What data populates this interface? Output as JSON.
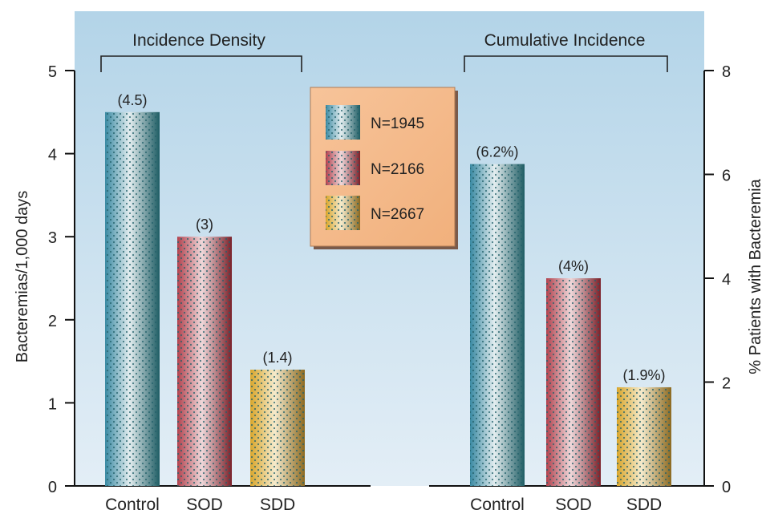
{
  "chart_data": [
    {
      "type": "bar",
      "title": "Incidence Density",
      "categories": [
        "Control",
        "SOD",
        "SDD"
      ],
      "values": [
        4.5,
        3,
        1.4
      ],
      "data_labels": [
        "(4.5)",
        "(3)",
        "(1.4)"
      ],
      "ylabel": "Bacteremias/1,000 days",
      "ylim": [
        0,
        5
      ],
      "yticks": [
        "0",
        "1",
        "2",
        "3",
        "4",
        "5"
      ],
      "axis_side": "left"
    },
    {
      "type": "bar",
      "title": "Cumulative Incidence",
      "categories": [
        "Control",
        "SOD",
        "SDD"
      ],
      "values": [
        6.2,
        4,
        1.9
      ],
      "data_labels": [
        "(6.2%)",
        "(4%)",
        "(1.9%)"
      ],
      "ylabel": "% Patients with Bacteremia",
      "ylim": [
        0,
        8
      ],
      "yticks": [
        "0",
        "2",
        "4",
        "6",
        "8"
      ],
      "axis_side": "right"
    }
  ],
  "legend": {
    "placement": "top-center",
    "items": [
      {
        "label": "N=1945",
        "color": "#2e7f8c"
      },
      {
        "label": "N=2166",
        "color": "#9e2f3a"
      },
      {
        "label": "N=2667",
        "color": "#c89a2c"
      }
    ]
  },
  "colors": {
    "background": "#bcd9ea",
    "legend_box": "#f4b98a",
    "series": [
      "#2e7f8c",
      "#9e2f3a",
      "#c89a2c"
    ]
  }
}
